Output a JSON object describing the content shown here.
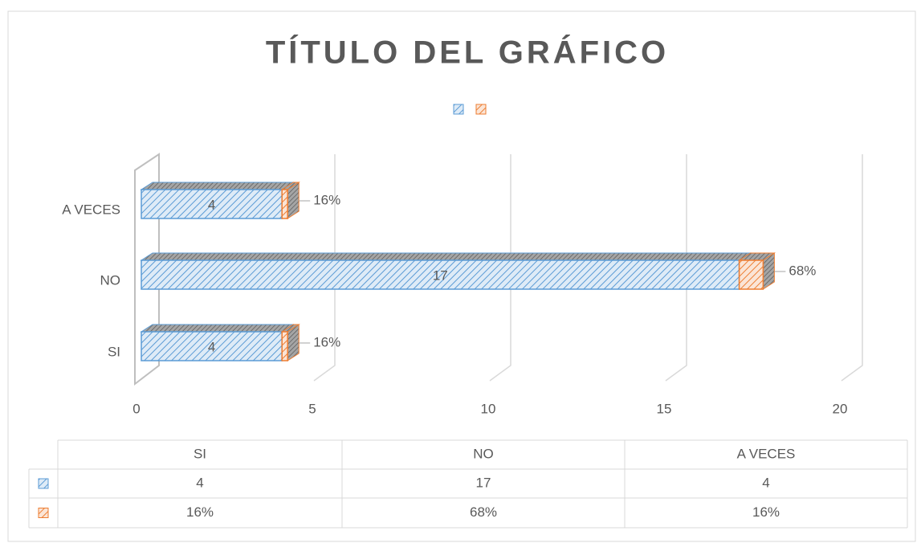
{
  "chart_data": {
    "type": "bar3d_stacked_h",
    "title": "TÍTULO DEL GRÁFICO",
    "categories": [
      "SI",
      "NO",
      "A VECES"
    ],
    "series": [
      {
        "color": "#5b9bd5",
        "values": [
          4,
          17,
          4
        ]
      },
      {
        "color": "#ed7d31",
        "values": [
          0.16,
          0.68,
          0.16
        ],
        "value_labels": [
          "16%",
          "68%",
          "16%"
        ]
      }
    ],
    "xlim": [
      0,
      20
    ],
    "xticks": [
      0,
      5,
      10,
      15,
      20
    ],
    "grid": true,
    "legend": "top",
    "data_table": true
  }
}
